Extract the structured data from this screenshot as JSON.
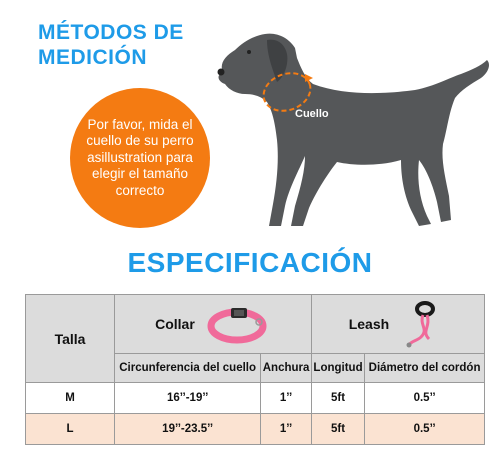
{
  "header": {
    "line1": "MÉTODOS DE",
    "line2": "MEDICIÓN"
  },
  "callout": {
    "text": "Por favor, mida el cuello de su perro asillustration para elegir el tamaño correcto"
  },
  "dog": {
    "neck_label": "Cuello"
  },
  "spec": {
    "title": "ESPECIFICACIÓN",
    "size_header": "Talla",
    "collar": {
      "label": "Collar",
      "col1": "Circunferencia del cuello",
      "col2": "Anchura"
    },
    "leash": {
      "label": "Leash",
      "col1": "Longitud",
      "col2": "Diámetro del cordón"
    },
    "rows": [
      {
        "size": "M",
        "neck": "16’’-19’’",
        "width": "1’’",
        "length": "5ft",
        "diameter": "0.5’’"
      },
      {
        "size": "L",
        "neck": "19’’-23.5’’",
        "width": "1’’",
        "length": "5ft",
        "diameter": "0.5’’"
      }
    ]
  },
  "colors": {
    "blue": "#1e9be8",
    "orange": "#f47b12",
    "dog": "#555759",
    "collar_pink": "#f06a9a",
    "row_peach": "#fbe3d2",
    "header_grey": "#dcdcdc"
  }
}
